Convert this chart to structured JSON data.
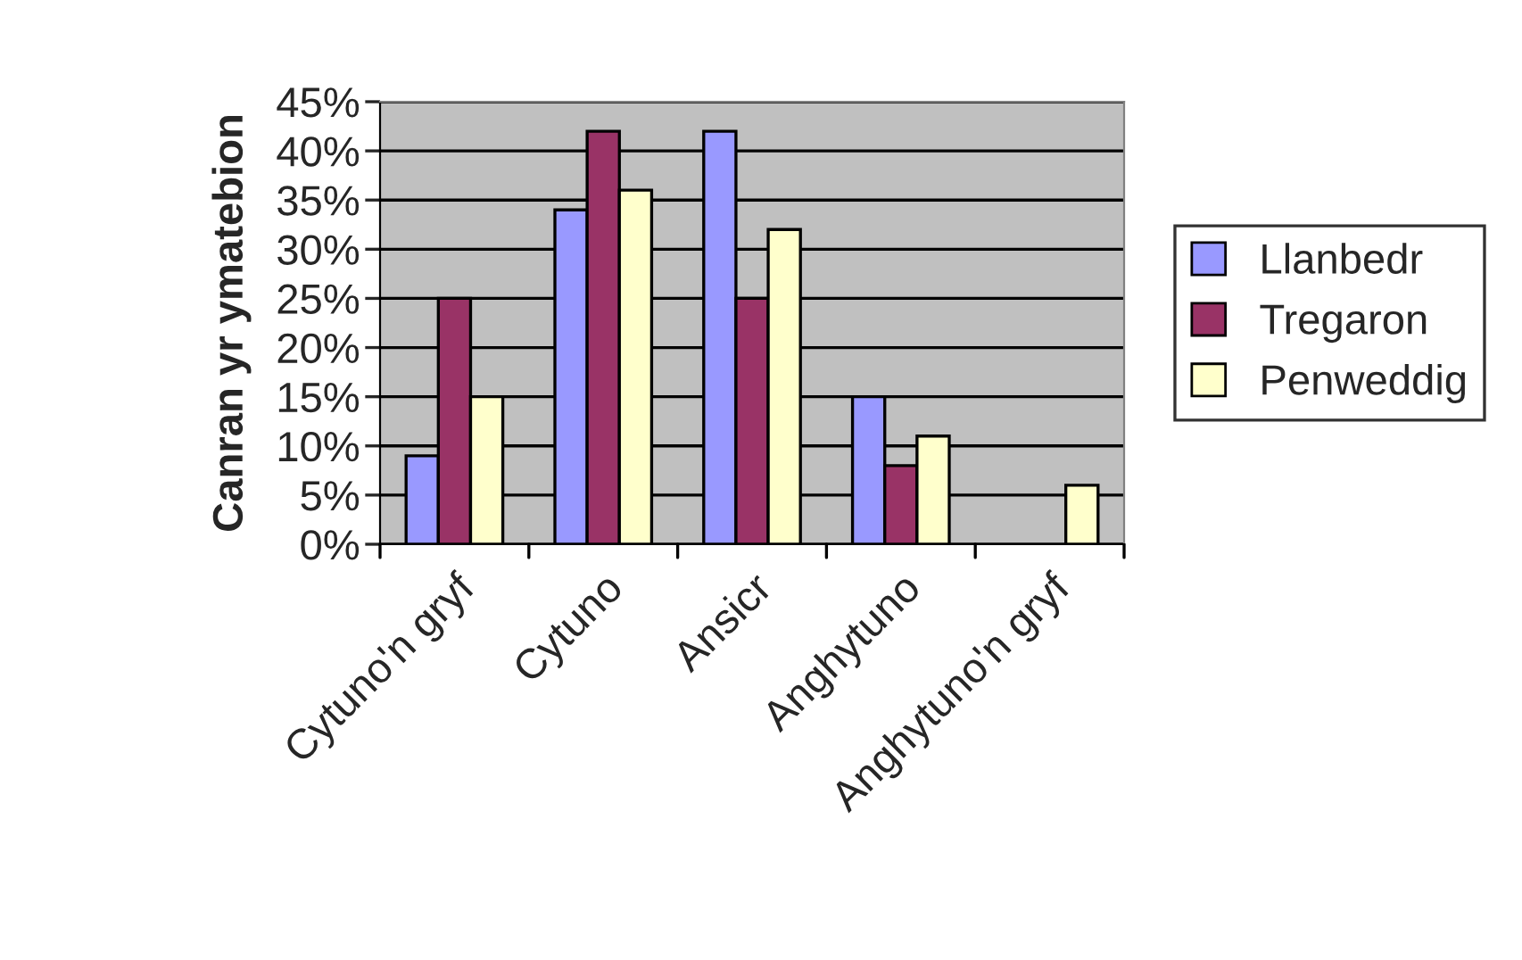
{
  "chart_data": {
    "type": "bar",
    "ylabel": "Canran yr ymatebion",
    "categories": [
      "Cytuno'n gryf",
      "Cytuno",
      "Ansicr",
      "Anghytuno",
      "Anghytuno'n gryf"
    ],
    "series": [
      {
        "name": "Llanbedr",
        "color": "#9999ff",
        "values": [
          9,
          34,
          42,
          15,
          null
        ]
      },
      {
        "name": "Tregaron",
        "color": "#993366",
        "values": [
          25,
          42,
          25,
          8,
          null
        ]
      },
      {
        "name": "Penweddig",
        "color": "#ffffcc",
        "values": [
          15,
          36,
          32,
          11,
          6
        ]
      }
    ],
    "ylim": [
      0,
      45
    ],
    "yticks": [
      {
        "value": 0,
        "label": "0%"
      },
      {
        "value": 5,
        "label": "5%"
      },
      {
        "value": 10,
        "label": "10%"
      },
      {
        "value": 15,
        "label": "15%"
      },
      {
        "value": 20,
        "label": "20%"
      },
      {
        "value": 25,
        "label": "25%"
      },
      {
        "value": 30,
        "label": "30%"
      },
      {
        "value": 35,
        "label": "35%"
      },
      {
        "value": 40,
        "label": "40%"
      },
      {
        "value": 45,
        "label": "45%"
      }
    ],
    "grid": "y",
    "legend": "right"
  }
}
